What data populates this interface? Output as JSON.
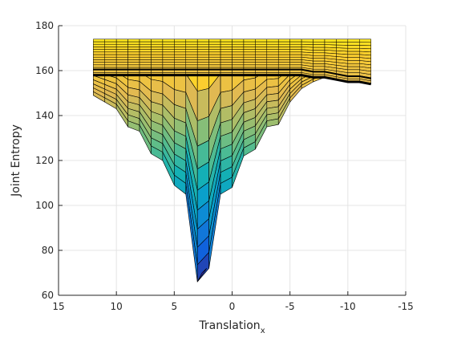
{
  "chart_data": {
    "type": "surface",
    "title": "",
    "xlabel": "Translation",
    "xlabel_subscript": "x",
    "ylabel": "Joint Entropy",
    "xlim": [
      15,
      -15
    ],
    "ylim": [
      60,
      180
    ],
    "x_reversed": true,
    "x_ticks": [
      15,
      10,
      5,
      0,
      -5,
      -10,
      -15
    ],
    "y_ticks": [
      60,
      80,
      100,
      120,
      140,
      160,
      180
    ],
    "grid": true,
    "colormap": "parula",
    "edge_color": "#000000",
    "x": [
      12,
      11,
      10,
      9,
      8,
      7,
      6,
      5,
      4,
      3,
      2,
      1,
      0,
      -1,
      -2,
      -3,
      -4,
      -5,
      -6,
      -7,
      -8,
      -9,
      -10,
      -11,
      -12
    ],
    "min_profile": [
      149,
      146,
      143,
      135,
      133,
      123,
      120,
      109,
      105,
      66,
      72,
      105,
      108,
      122,
      125,
      135,
      136,
      146,
      152,
      155,
      157,
      159,
      159,
      158,
      157
    ],
    "top_level": 172,
    "top_back_level": 174,
    "front_edge_profile": [
      158,
      158,
      158,
      158,
      158,
      158,
      158,
      158,
      158,
      158,
      158,
      158,
      158,
      158,
      158,
      158,
      158,
      158,
      158,
      157,
      157,
      156,
      155,
      155,
      154
    ]
  }
}
